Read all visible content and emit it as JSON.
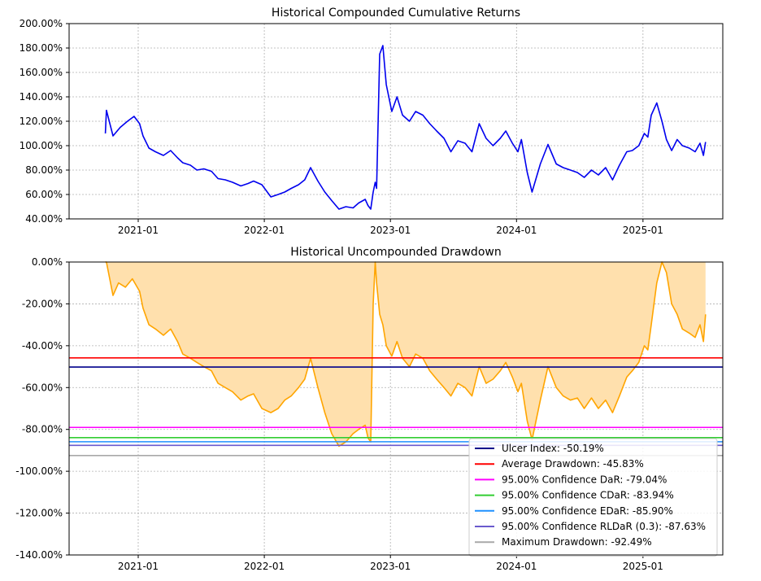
{
  "chart_data": [
    {
      "type": "line",
      "title": "Historical Compounded Cumulative Returns",
      "xlabel": "",
      "ylabel": "",
      "x_ticks": [
        "2021-01",
        "2022-01",
        "2023-01",
        "2024-01",
        "2025-01"
      ],
      "x_range": [
        "2020-06-15",
        "2025-08-20"
      ],
      "ylim": [
        40,
        200
      ],
      "y_ticks": [
        40,
        60,
        80,
        100,
        120,
        140,
        160,
        180,
        200
      ],
      "y_tick_labels": [
        "40.00%",
        "60.00%",
        "80.00%",
        "100.00%",
        "120.00%",
        "140.00%",
        "160.00%",
        "180.00%",
        "200.00%"
      ],
      "grid": true,
      "line_color": "#0000ee",
      "series": [
        {
          "x": [
            "2020-09-28",
            "2020-10-01",
            "2020-10-20",
            "2020-11-10",
            "2020-12-01",
            "2020-12-20",
            "2021-01-05",
            "2021-01-15",
            "2021-02-01",
            "2021-02-20",
            "2021-03-15",
            "2021-04-05",
            "2021-04-25",
            "2021-05-10",
            "2021-06-01",
            "2021-06-20",
            "2021-07-10",
            "2021-08-01",
            "2021-08-20",
            "2021-09-10",
            "2021-10-01",
            "2021-10-25",
            "2021-11-15",
            "2021-12-01",
            "2021-12-25",
            "2022-01-20",
            "2022-02-10",
            "2022-03-01",
            "2022-03-20",
            "2022-04-10",
            "2022-04-28",
            "2022-05-15",
            "2022-06-05",
            "2022-06-25",
            "2022-07-15",
            "2022-08-05",
            "2022-08-25",
            "2022-09-15",
            "2022-10-01",
            "2022-10-20",
            "2022-10-28",
            "2022-11-05",
            "2022-11-12",
            "2022-11-18",
            "2022-11-22",
            "2022-12-01",
            "2022-12-10",
            "2022-12-20",
            "2023-01-05",
            "2023-01-20",
            "2023-02-05",
            "2023-02-25",
            "2023-03-15",
            "2023-04-05",
            "2023-04-25",
            "2023-05-15",
            "2023-06-05",
            "2023-06-25",
            "2023-07-15",
            "2023-08-05",
            "2023-08-25",
            "2023-09-15",
            "2023-10-05",
            "2023-10-25",
            "2023-11-15",
            "2023-12-01",
            "2023-12-20",
            "2024-01-05",
            "2024-01-15",
            "2024-02-01",
            "2024-02-15",
            "2024-03-10",
            "2024-04-01",
            "2024-04-25",
            "2024-05-15",
            "2024-06-05",
            "2024-06-25",
            "2024-07-15",
            "2024-08-05",
            "2024-08-25",
            "2024-09-15",
            "2024-10-05",
            "2024-10-25",
            "2024-11-15",
            "2024-12-01",
            "2024-12-20",
            "2025-01-05",
            "2025-01-15",
            "2025-01-25",
            "2025-02-10",
            "2025-02-25",
            "2025-03-10",
            "2025-03-25",
            "2025-04-10",
            "2025-04-25",
            "2025-05-15",
            "2025-06-01",
            "2025-06-15",
            "2025-06-25",
            "2025-07-01"
          ],
          "y": [
            110,
            129,
            108,
            115,
            120,
            124,
            118,
            108,
            98,
            95,
            92,
            96,
            90,
            86,
            84,
            80,
            81,
            79,
            73,
            72,
            70,
            67,
            69,
            71,
            68,
            58,
            60,
            62,
            65,
            68,
            72,
            82,
            71,
            62,
            55,
            48,
            50,
            49,
            53,
            56,
            51,
            48,
            62,
            70,
            65,
            175,
            182,
            150,
            128,
            140,
            125,
            120,
            128,
            125,
            118,
            112,
            106,
            95,
            104,
            102,
            95,
            118,
            106,
            100,
            106,
            112,
            102,
            95,
            105,
            78,
            62,
            85,
            101,
            85,
            82,
            80,
            78,
            74,
            80,
            76,
            82,
            72,
            84,
            95,
            96,
            100,
            110,
            107,
            125,
            135,
            120,
            105,
            96,
            105,
            100,
            98,
            95,
            102,
            92,
            103
          ]
        }
      ]
    },
    {
      "type": "area",
      "title": "Historical Uncompounded Drawdown",
      "xlabel": "",
      "ylabel": "",
      "x_ticks": [
        "2021-01",
        "2022-01",
        "2023-01",
        "2024-01",
        "2025-01"
      ],
      "x_range": [
        "2020-06-15",
        "2025-08-20"
      ],
      "ylim": [
        -140,
        0
      ],
      "y_ticks": [
        0,
        -20,
        -40,
        -60,
        -80,
        -100,
        -120,
        -140
      ],
      "y_tick_labels": [
        "0.00%",
        "-20.00%",
        "-40.00%",
        "-60.00%",
        "-80.00%",
        "-100.00%",
        "-120.00%",
        "-140.00%"
      ],
      "grid": true,
      "line_color": "#ffa500",
      "fill_color": "#ffe0ad",
      "series": [
        {
          "x": [
            "2020-09-28",
            "2020-10-01",
            "2020-10-20",
            "2020-11-05",
            "2020-11-25",
            "2020-12-15",
            "2021-01-05",
            "2021-01-15",
            "2021-02-01",
            "2021-02-20",
            "2021-03-15",
            "2021-04-05",
            "2021-04-25",
            "2021-05-10",
            "2021-06-01",
            "2021-06-20",
            "2021-07-10",
            "2021-08-01",
            "2021-08-20",
            "2021-09-10",
            "2021-10-01",
            "2021-10-25",
            "2021-11-15",
            "2021-12-01",
            "2021-12-25",
            "2022-01-20",
            "2022-02-10",
            "2022-03-01",
            "2022-03-20",
            "2022-04-10",
            "2022-04-28",
            "2022-05-15",
            "2022-06-05",
            "2022-06-25",
            "2022-07-15",
            "2022-08-05",
            "2022-08-25",
            "2022-09-15",
            "2022-10-01",
            "2022-10-20",
            "2022-10-28",
            "2022-11-05",
            "2022-11-12",
            "2022-11-18",
            "2022-11-22",
            "2022-12-01",
            "2022-12-10",
            "2022-12-20",
            "2023-01-05",
            "2023-01-20",
            "2023-02-05",
            "2023-02-25",
            "2023-03-15",
            "2023-04-05",
            "2023-04-25",
            "2023-05-15",
            "2023-06-05",
            "2023-06-25",
            "2023-07-15",
            "2023-08-05",
            "2023-08-25",
            "2023-09-15",
            "2023-10-05",
            "2023-10-25",
            "2023-11-15",
            "2023-12-01",
            "2023-12-20",
            "2024-01-05",
            "2024-01-15",
            "2024-02-01",
            "2024-02-15",
            "2024-03-10",
            "2024-04-01",
            "2024-04-25",
            "2024-05-15",
            "2024-06-05",
            "2024-06-25",
            "2024-07-15",
            "2024-08-05",
            "2024-08-25",
            "2024-09-15",
            "2024-10-05",
            "2024-10-25",
            "2024-11-15",
            "2024-12-01",
            "2024-12-20",
            "2025-01-05",
            "2025-01-15",
            "2025-01-25",
            "2025-02-10",
            "2025-02-25",
            "2025-03-10",
            "2025-03-25",
            "2025-04-10",
            "2025-04-25",
            "2025-05-15",
            "2025-06-01",
            "2025-06-15",
            "2025-06-25",
            "2025-07-01"
          ],
          "y": [
            0,
            0,
            -16,
            -10,
            -12,
            -8,
            -14,
            -22,
            -30,
            -32,
            -35,
            -32,
            -38,
            -44,
            -46,
            -48,
            -50,
            -52,
            -58,
            -60,
            -62,
            -66,
            -64,
            -63,
            -70,
            -72,
            -70,
            -66,
            -64,
            -60,
            -56,
            -46,
            -60,
            -72,
            -82,
            -88,
            -86,
            -82,
            -80,
            -78,
            -84,
            -86,
            -20,
            0,
            -10,
            -25,
            -30,
            -40,
            -45,
            -38,
            -46,
            -50,
            -44,
            -46,
            -52,
            -56,
            -60,
            -64,
            -58,
            -60,
            -64,
            -50,
            -58,
            -56,
            -52,
            -48,
            -55,
            -62,
            -58,
            -76,
            -85,
            -66,
            -50,
            -60,
            -64,
            -66,
            -65,
            -70,
            -65,
            -70,
            -66,
            -72,
            -64,
            -55,
            -52,
            -48,
            -40,
            -42,
            -30,
            -10,
            0,
            -5,
            -20,
            -25,
            -32,
            -34,
            -36,
            -30,
            -38,
            -25
          ]
        }
      ],
      "reference_lines": [
        {
          "label": "Ulcer Index: -50.19%",
          "value": -50.19,
          "color": "#00008b"
        },
        {
          "label": "Average Drawdown: -45.83%",
          "value": -45.83,
          "color": "#ff0000"
        },
        {
          "label": "95.00% Confidence DaR: -79.04%",
          "value": -79.04,
          "color": "#ff00ff"
        },
        {
          "label": "95.00% Confidence CDaR: -83.94%",
          "value": -83.94,
          "color": "#32cd32"
        },
        {
          "label": "95.00% Confidence EDaR: -85.90%",
          "value": -85.9,
          "color": "#1e90ff"
        },
        {
          "label": "95.00% Confidence RLDaR (0.3): -87.63%",
          "value": -87.63,
          "color": "#6a5acd"
        },
        {
          "label": "Maximum Drawdown: -92.49%",
          "value": -92.49,
          "color": "#a9a9a9"
        }
      ],
      "legend_position": "lower-right"
    }
  ]
}
